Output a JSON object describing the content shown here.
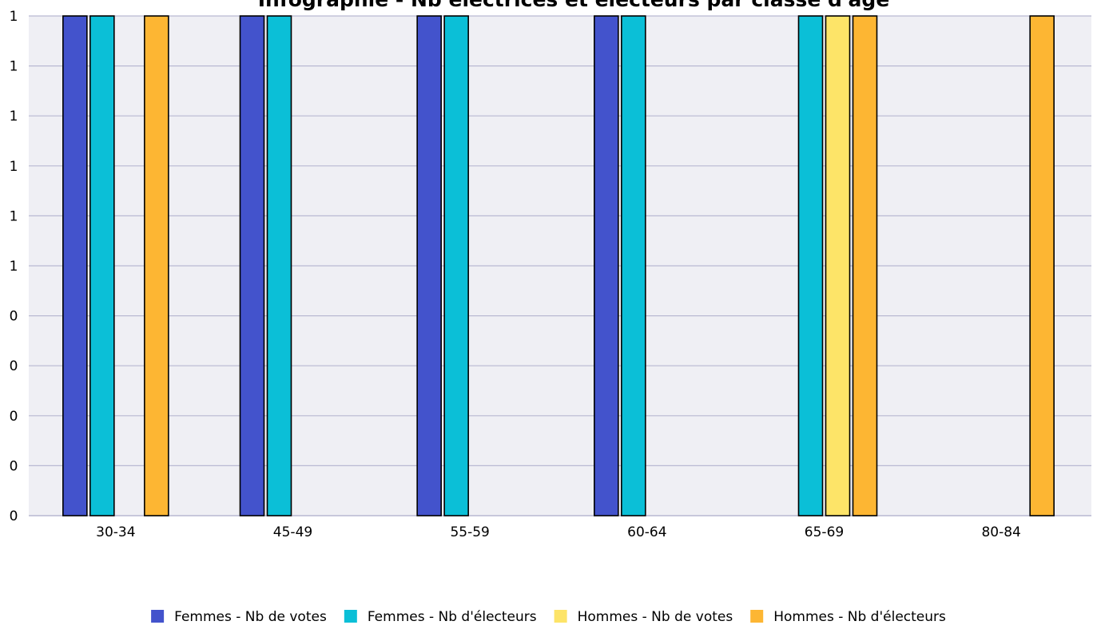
{
  "chart_data": {
    "type": "bar",
    "title": "Infographie - Nb électrices et électeurs par classe d'âge",
    "categories": [
      "30-34",
      "45-49",
      "55-59",
      "60-64",
      "65-69",
      "80-84"
    ],
    "y_tick_labels": [
      "0",
      "0",
      "0",
      "0",
      "0",
      "1",
      "1",
      "1",
      "1",
      "1",
      "1"
    ],
    "ylim": [
      0,
      1
    ],
    "grid": true,
    "legend_position": "bottom",
    "series": [
      {
        "name": "Femmes - Nb de votes",
        "color": "#4353CC",
        "values": [
          1,
          1,
          1,
          1,
          0,
          0
        ]
      },
      {
        "name": "Femmes - Nb d'électeurs",
        "color": "#0BBFD7",
        "values": [
          1,
          1,
          1,
          1,
          1,
          0
        ]
      },
      {
        "name": "Hommes - Nb de votes",
        "color": "#FDE468",
        "values": [
          0,
          0,
          0,
          0,
          1,
          0
        ]
      },
      {
        "name": "Hommes - Nb d'électeurs",
        "color": "#FDB633",
        "values": [
          1,
          0,
          0,
          0,
          1,
          1
        ]
      }
    ]
  }
}
